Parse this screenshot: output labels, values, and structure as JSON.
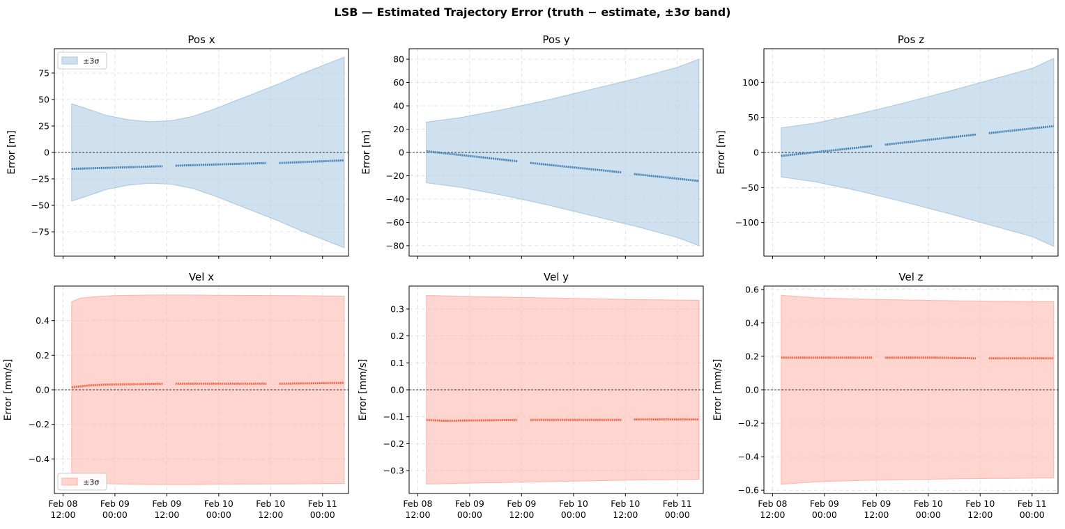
{
  "figure": {
    "suptitle": "LSB — Estimated Trajectory Error  (truth − estimate,  ±3σ band)"
  },
  "colors": {
    "pos_line": "#4682b4",
    "pos_band": "#a8c6e0",
    "vel_line": "#ff6347",
    "vel_band": "#ffb3a7"
  },
  "chart_data": [
    {
      "type": "area",
      "title": "Pos x",
      "xlabel": "",
      "ylabel": "Error [m]",
      "ylim": [
        -98,
        98
      ],
      "yticks": [
        -75,
        -50,
        -25,
        0,
        25,
        50,
        75
      ],
      "xlim": [
        -2,
        56
      ],
      "xticks": [
        0,
        12,
        24,
        36,
        48,
        60
      ],
      "xtick_labels": [
        [
          "Feb 08",
          "12:00"
        ],
        [
          "Feb 09",
          "00:00"
        ],
        [
          "Feb 09",
          "12:00"
        ],
        [
          "Feb 10",
          "00:00"
        ],
        [
          "Feb 10",
          "12:00"
        ],
        [
          "Feb 11",
          "00:00"
        ]
      ],
      "show_xtick_labels": false,
      "grid": true,
      "zero_line": true,
      "legend": {
        "label": "±3σ",
        "loc": "upper-left"
      },
      "band": {
        "name": "±3σ",
        "x": [
          2,
          5,
          10,
          15,
          20,
          25,
          30,
          35,
          40,
          45,
          50,
          55,
          60,
          65
        ],
        "upper": [
          46,
          42,
          35,
          31,
          29,
          30,
          34,
          41,
          49,
          57,
          65,
          74,
          82,
          90
        ]
      },
      "series": [
        {
          "x": [
            2,
            23
          ],
          "y": [
            -15.5,
            -13
          ]
        },
        {
          "x": [
            26,
            47
          ],
          "y": [
            -12.5,
            -10
          ]
        },
        {
          "x": [
            50,
            65
          ],
          "y": [
            -10,
            -7.5
          ]
        }
      ]
    },
    {
      "type": "area",
      "title": "Pos y",
      "xlabel": "",
      "ylabel": "Error [m]",
      "ylim": [
        -89,
        89
      ],
      "yticks": [
        -80,
        -60,
        -40,
        -20,
        0,
        20,
        40,
        60,
        80
      ],
      "xlim": [
        -2,
        56
      ],
      "xticks": [
        0,
        12,
        24,
        36,
        48,
        60
      ],
      "xtick_labels": [
        [
          "Feb 08",
          "12:00"
        ],
        [
          "Feb 09",
          "00:00"
        ],
        [
          "Feb 09",
          "12:00"
        ],
        [
          "Feb 10",
          "00:00"
        ],
        [
          "Feb 10",
          "12:00"
        ],
        [
          "Feb 11",
          "00:00"
        ]
      ],
      "show_xtick_labels": false,
      "grid": true,
      "zero_line": true,
      "band": {
        "name": "±3σ",
        "x": [
          2,
          10,
          20,
          30,
          40,
          50,
          60,
          65
        ],
        "upper": [
          26,
          30,
          37,
          45,
          54,
          63,
          73,
          80
        ]
      },
      "series": [
        {
          "x": [
            2,
            23
          ],
          "y": [
            1,
            -7.5
          ]
        },
        {
          "x": [
            26,
            47
          ],
          "y": [
            -9,
            -17
          ]
        },
        {
          "x": [
            50,
            65
          ],
          "y": [
            -18.5,
            -24.5
          ]
        }
      ]
    },
    {
      "type": "area",
      "title": "Pos z",
      "xlabel": "",
      "ylabel": "Error [m]",
      "ylim": [
        -148,
        148
      ],
      "yticks": [
        -100,
        -50,
        0,
        50,
        100
      ],
      "xlim": [
        -2,
        56
      ],
      "xticks": [
        0,
        12,
        24,
        36,
        48,
        60
      ],
      "xtick_labels": [
        [
          "Feb 08",
          "12:00"
        ],
        [
          "Feb 09",
          "00:00"
        ],
        [
          "Feb 09",
          "12:00"
        ],
        [
          "Feb 10",
          "00:00"
        ],
        [
          "Feb 10",
          "12:00"
        ],
        [
          "Feb 11",
          "00:00"
        ]
      ],
      "show_xtick_labels": false,
      "grid": true,
      "zero_line": true,
      "band": {
        "name": "±3σ",
        "x": [
          2,
          10,
          20,
          30,
          40,
          50,
          60,
          65
        ],
        "upper": [
          35,
          42,
          55,
          70,
          86,
          103,
          120,
          134
        ]
      },
      "series": [
        {
          "x": [
            2,
            23
          ],
          "y": [
            -5,
            9
          ]
        },
        {
          "x": [
            26,
            47
          ],
          "y": [
            11,
            25.5
          ]
        },
        {
          "x": [
            50,
            65
          ],
          "y": [
            27.5,
            37.5
          ]
        }
      ]
    },
    {
      "type": "area",
      "title": "Vel x",
      "xlabel": "",
      "ylabel": "Error [mm/s]",
      "ylim": [
        -0.6,
        0.6
      ],
      "yticks": [
        -0.4,
        -0.2,
        0.0,
        0.2,
        0.4
      ],
      "ytick_labels": [
        "−0.4",
        "−0.2",
        "0.0",
        "0.2",
        "0.4"
      ],
      "xlim": [
        -2,
        56
      ],
      "xticks": [
        0,
        12,
        24,
        36,
        48,
        60
      ],
      "xtick_labels": [
        [
          "Feb 08",
          "12:00"
        ],
        [
          "Feb 09",
          "00:00"
        ],
        [
          "Feb 09",
          "12:00"
        ],
        [
          "Feb 10",
          "00:00"
        ],
        [
          "Feb 10",
          "12:00"
        ],
        [
          "Feb 11",
          "00:00"
        ]
      ],
      "show_xtick_labels": true,
      "grid": true,
      "zero_line": true,
      "legend": {
        "label": "±3σ",
        "loc": "lower-left"
      },
      "band": {
        "name": "±3σ",
        "x": [
          2,
          4,
          8,
          12,
          20,
          30,
          40,
          50,
          60,
          65
        ],
        "upper": [
          0.51,
          0.53,
          0.54,
          0.545,
          0.548,
          0.548,
          0.546,
          0.545,
          0.543,
          0.542
        ]
      },
      "series": [
        {
          "x": [
            2,
            6,
            10,
            23
          ],
          "y": [
            0.015,
            0.025,
            0.03,
            0.035
          ]
        },
        {
          "x": [
            26,
            47
          ],
          "y": [
            0.035,
            0.035
          ]
        },
        {
          "x": [
            50,
            65
          ],
          "y": [
            0.035,
            0.04
          ]
        }
      ]
    },
    {
      "type": "area",
      "title": "Vel y",
      "xlabel": "",
      "ylabel": "Error [mm/s]",
      "ylim": [
        -0.385,
        0.385
      ],
      "yticks": [
        -0.3,
        -0.2,
        -0.1,
        0.0,
        0.1,
        0.2,
        0.3
      ],
      "ytick_labels": [
        "−0.3",
        "−0.2",
        "−0.1",
        "0.0",
        "0.1",
        "0.2",
        "0.3"
      ],
      "xlim": [
        -2,
        56
      ],
      "xticks": [
        0,
        12,
        24,
        36,
        48,
        60
      ],
      "xtick_labels": [
        [
          "Feb 08",
          "12:00"
        ],
        [
          "Feb 09",
          "00:00"
        ],
        [
          "Feb 09",
          "12:00"
        ],
        [
          "Feb 10",
          "00:00"
        ],
        [
          "Feb 10",
          "12:00"
        ],
        [
          "Feb 11",
          "00:00"
        ]
      ],
      "show_xtick_labels": true,
      "grid": true,
      "zero_line": true,
      "band": {
        "name": "±3σ",
        "x": [
          2,
          10,
          20,
          30,
          40,
          50,
          60,
          65
        ],
        "upper": [
          0.35,
          0.347,
          0.344,
          0.341,
          0.338,
          0.335,
          0.333,
          0.332
        ]
      },
      "series": [
        {
          "x": [
            2,
            6,
            12,
            23
          ],
          "y": [
            -0.112,
            -0.115,
            -0.114,
            -0.112
          ]
        },
        {
          "x": [
            26,
            47
          ],
          "y": [
            -0.112,
            -0.112
          ]
        },
        {
          "x": [
            50,
            65
          ],
          "y": [
            -0.11,
            -0.11
          ]
        }
      ]
    },
    {
      "type": "area",
      "title": "Vel z",
      "xlabel": "",
      "ylabel": "Error [mm/s]",
      "ylim": [
        -0.62,
        0.62
      ],
      "yticks": [
        -0.6,
        -0.4,
        -0.2,
        0.0,
        0.2,
        0.4,
        0.6
      ],
      "ytick_labels": [
        "−0.6",
        "−0.4",
        "−0.2",
        "0.0",
        "0.2",
        "0.4",
        "0.6"
      ],
      "xlim": [
        -2,
        56
      ],
      "xticks": [
        0,
        12,
        24,
        36,
        48,
        60
      ],
      "xtick_labels": [
        [
          "Feb 08",
          "12:00"
        ],
        [
          "Feb 09",
          "00:00"
        ],
        [
          "Feb 09",
          "12:00"
        ],
        [
          "Feb 10",
          "00:00"
        ],
        [
          "Feb 10",
          "12:00"
        ],
        [
          "Feb 11",
          "00:00"
        ]
      ],
      "show_xtick_labels": true,
      "grid": true,
      "zero_line": true,
      "band": {
        "name": "±3σ",
        "x": [
          2,
          10,
          20,
          30,
          40,
          50,
          60,
          65
        ],
        "upper": [
          0.565,
          0.55,
          0.542,
          0.537,
          0.533,
          0.53,
          0.528,
          0.527
        ]
      },
      "series": [
        {
          "x": [
            2,
            23
          ],
          "y": [
            0.192,
            0.192
          ]
        },
        {
          "x": [
            26,
            38,
            47
          ],
          "y": [
            0.192,
            0.192,
            0.188
          ]
        },
        {
          "x": [
            50,
            65
          ],
          "y": [
            0.188,
            0.188
          ]
        }
      ]
    }
  ]
}
